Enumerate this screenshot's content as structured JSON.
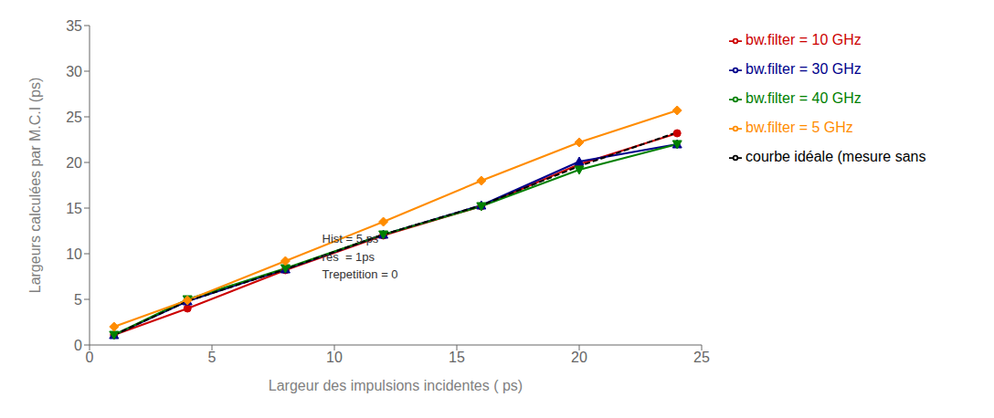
{
  "chart_data": {
    "type": "line",
    "x": [
      1,
      4,
      8,
      12,
      16,
      20,
      24
    ],
    "xlabel": "Largeur des impulsions incidentes ( ps)",
    "ylabel": "Largeurs calculées par M.C.I (ps)",
    "xlim": [
      0,
      25
    ],
    "ylim": [
      0,
      35
    ],
    "xticks": [
      0,
      5,
      10,
      15,
      20,
      25
    ],
    "yticks": [
      0,
      5,
      10,
      15,
      20,
      25,
      30,
      35
    ],
    "grid": false,
    "legend": "right",
    "series": [
      {
        "name": "bw.filter = 10 GHz",
        "color": "#cc0000",
        "marker": "circle",
        "line_style": "solid",
        "values": [
          1.1,
          4.0,
          8.2,
          12.0,
          15.2,
          19.8,
          23.2
        ]
      },
      {
        "name": "bw.filter = 30 GHz",
        "color": "#00008b",
        "marker": "triangle",
        "line_style": "solid",
        "values": [
          1.1,
          4.8,
          8.3,
          12.1,
          15.3,
          20.1,
          22.0
        ]
      },
      {
        "name": "bw.filter = 40 GHz",
        "color": "#008000",
        "marker": "triangle-down",
        "line_style": "solid",
        "values": [
          1.1,
          5.0,
          8.4,
          12.1,
          15.2,
          19.2,
          22.0
        ]
      },
      {
        "name": "bw.filter = 5 GHz",
        "color": "#ff8c00",
        "marker": "diamond",
        "line_style": "solid",
        "values": [
          2.0,
          4.9,
          9.2,
          13.5,
          18.0,
          22.2,
          25.7
        ]
      },
      {
        "name": "courbe idéale (mesure sans",
        "color": "#000000",
        "marker": "none",
        "line_style": "dashed",
        "values": [
          1.1,
          4.8,
          8.3,
          12.1,
          15.3,
          19.6,
          23.3
        ]
      }
    ],
    "annotations": [
      {
        "text": "Hist = 5 ps\nres  = 1ps\nTrepetition = 0",
        "x": 9.5,
        "y": 12.5
      }
    ]
  }
}
